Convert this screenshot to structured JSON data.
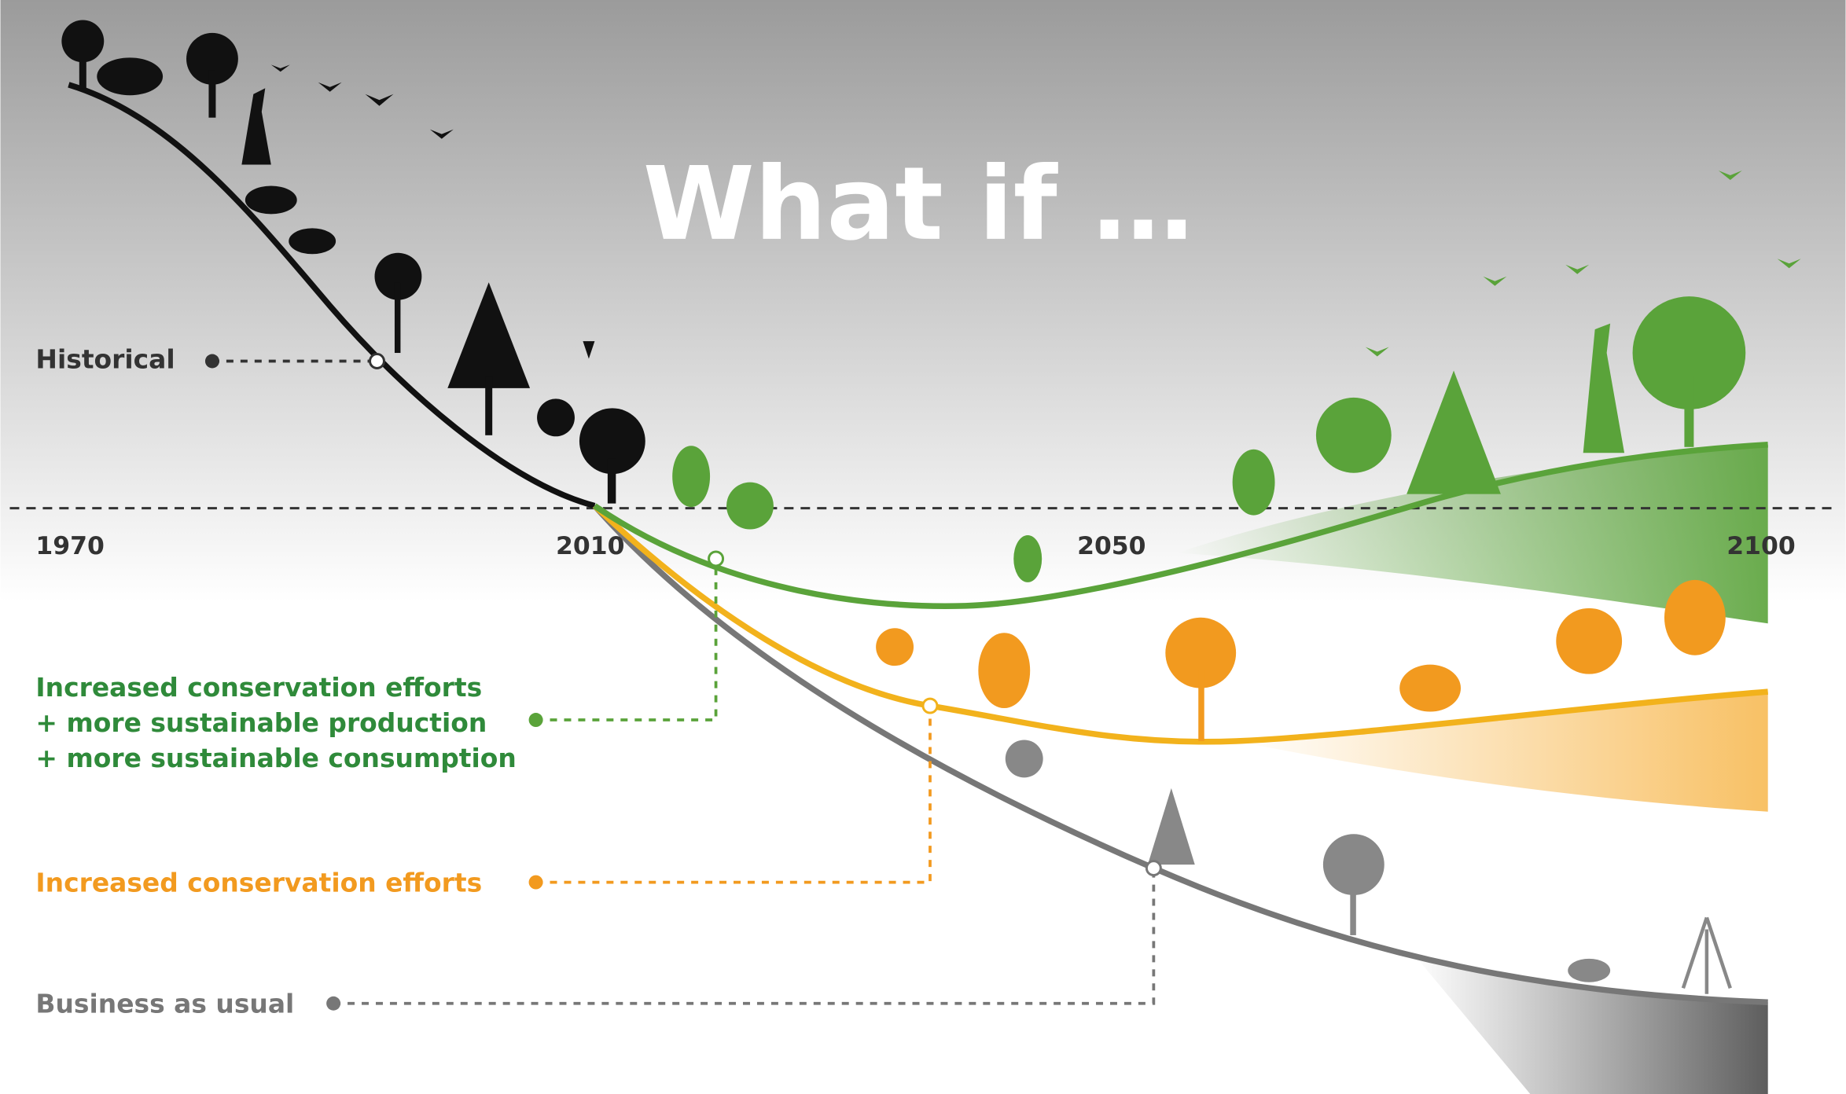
{
  "title": "What if …",
  "timeline": {
    "years": [
      "1970",
      "2010",
      "2050",
      "2100"
    ]
  },
  "scenarios": [
    {
      "lines": [
        "Historical"
      ]
    },
    {
      "lines": [
        "Increased conservation efforts",
        "+ more sustainable production",
        "+ more sustainable consumption"
      ]
    },
    {
      "lines": [
        "Increased conservation efforts"
      ]
    },
    {
      "lines": [
        "Business as usual"
      ]
    }
  ]
}
